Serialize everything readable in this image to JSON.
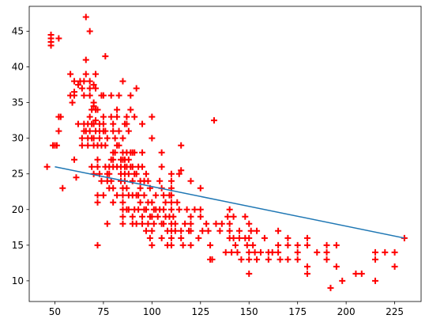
{
  "chart_data": {
    "type": "scatter",
    "title": "",
    "xlabel": "",
    "ylabel": "",
    "xlim": [
      36.8,
      238.6
    ],
    "ylim": [
      7.1,
      48.5
    ],
    "xticks": [
      50,
      75,
      100,
      125,
      150,
      175,
      200,
      225
    ],
    "yticks": [
      10,
      15,
      20,
      25,
      30,
      35,
      40,
      45
    ],
    "grid": false,
    "legend": "none",
    "colors": {
      "scatter": "#ff0000",
      "line": "#1f77b4",
      "axes": "#000000",
      "background": "#ffffff"
    },
    "series": [
      {
        "kind": "scatter",
        "marker": "plus",
        "points": [
          [
            46,
            26
          ],
          [
            48,
            43
          ],
          [
            48,
            43.5
          ],
          [
            48,
            44
          ],
          [
            48,
            44.5
          ],
          [
            49,
            29
          ],
          [
            50,
            29
          ],
          [
            51,
            29
          ],
          [
            52,
            44
          ],
          [
            52,
            33
          ],
          [
            52,
            31
          ],
          [
            53,
            33
          ],
          [
            54,
            23
          ],
          [
            58,
            36
          ],
          [
            58,
            39
          ],
          [
            59,
            35
          ],
          [
            60,
            38
          ],
          [
            60,
            36
          ],
          [
            60,
            36.5
          ],
          [
            60,
            27
          ],
          [
            61,
            24.5
          ],
          [
            62,
            37.5
          ],
          [
            62,
            32
          ],
          [
            63,
            38
          ],
          [
            64,
            37
          ],
          [
            64,
            30
          ],
          [
            64,
            29
          ],
          [
            65,
            36
          ],
          [
            65,
            32
          ],
          [
            65,
            31
          ],
          [
            65,
            38
          ],
          [
            66,
            41
          ],
          [
            66,
            39
          ],
          [
            66,
            31
          ],
          [
            66,
            47
          ],
          [
            67,
            32
          ],
          [
            67,
            30
          ],
          [
            67,
            29
          ],
          [
            68,
            33
          ],
          [
            68,
            31
          ],
          [
            68,
            38
          ],
          [
            68,
            45
          ],
          [
            68,
            37
          ],
          [
            68,
            36
          ],
          [
            69,
            32
          ],
          [
            69,
            34
          ],
          [
            69,
            30
          ],
          [
            69,
            26
          ],
          [
            70,
            32
          ],
          [
            70,
            34.5
          ],
          [
            70,
            37.5
          ],
          [
            70,
            35
          ],
          [
            70,
            30
          ],
          [
            70,
            29
          ],
          [
            70,
            25
          ],
          [
            71,
            34
          ],
          [
            71,
            31
          ],
          [
            71,
            39
          ],
          [
            71,
            37
          ],
          [
            71,
            32.5
          ],
          [
            72,
            34
          ],
          [
            72,
            29
          ],
          [
            72,
            27
          ],
          [
            72,
            26
          ],
          [
            72,
            22
          ],
          [
            72,
            21
          ],
          [
            72,
            15
          ],
          [
            73,
            32
          ],
          [
            73,
            31
          ],
          [
            73,
            30
          ],
          [
            73,
            25
          ],
          [
            74,
            36
          ],
          [
            74,
            29
          ],
          [
            74,
            24
          ],
          [
            75,
            36
          ],
          [
            75,
            33
          ],
          [
            75,
            32
          ],
          [
            75,
            31
          ],
          [
            75,
            22
          ],
          [
            76,
            41.5
          ],
          [
            76,
            31
          ],
          [
            76,
            29
          ],
          [
            76,
            26
          ],
          [
            77,
            30
          ],
          [
            77,
            25
          ],
          [
            77,
            24
          ],
          [
            77,
            18
          ],
          [
            78,
            26
          ],
          [
            78,
            25
          ],
          [
            78,
            23
          ],
          [
            79,
            36
          ],
          [
            79,
            33
          ],
          [
            79,
            27
          ],
          [
            79,
            24
          ],
          [
            80,
            32
          ],
          [
            80,
            31
          ],
          [
            80,
            28
          ],
          [
            80,
            27
          ],
          [
            80,
            26
          ],
          [
            80,
            23
          ],
          [
            80,
            21
          ],
          [
            81,
            30
          ],
          [
            81,
            28
          ],
          [
            82,
            34
          ],
          [
            82,
            33
          ],
          [
            82,
            29
          ],
          [
            82,
            26
          ],
          [
            82,
            22
          ],
          [
            83,
            36
          ],
          [
            83,
            31
          ],
          [
            83,
            29
          ],
          [
            84,
            27
          ],
          [
            84,
            26
          ],
          [
            84,
            25
          ],
          [
            84,
            24
          ],
          [
            85,
            38
          ],
          [
            85,
            30
          ],
          [
            85,
            28
          ],
          [
            85,
            27
          ],
          [
            85,
            23
          ],
          [
            85,
            22
          ],
          [
            85,
            21
          ],
          [
            85,
            20
          ],
          [
            85,
            19
          ],
          [
            85,
            18
          ],
          [
            86,
            32
          ],
          [
            86,
            27
          ],
          [
            86,
            26
          ],
          [
            86,
            25
          ],
          [
            86,
            24
          ],
          [
            87,
            33
          ],
          [
            87,
            32
          ],
          [
            87,
            28
          ],
          [
            87,
            26
          ],
          [
            87,
            23
          ],
          [
            87,
            20
          ],
          [
            88,
            31
          ],
          [
            88,
            27
          ],
          [
            88,
            25
          ],
          [
            88,
            22
          ],
          [
            88,
            20
          ],
          [
            89,
            36
          ],
          [
            89,
            34
          ],
          [
            89,
            28
          ],
          [
            89,
            26
          ],
          [
            90,
            28
          ],
          [
            90,
            26
          ],
          [
            90,
            24
          ],
          [
            90,
            22
          ],
          [
            90,
            19
          ],
          [
            90,
            18
          ],
          [
            91,
            33
          ],
          [
            91,
            28
          ],
          [
            91,
            25
          ],
          [
            91,
            20
          ],
          [
            92,
            37
          ],
          [
            92,
            25
          ],
          [
            92,
            22
          ],
          [
            92,
            18
          ],
          [
            93,
            26
          ],
          [
            93,
            22
          ],
          [
            93,
            20
          ],
          [
            94,
            24
          ],
          [
            94,
            23
          ],
          [
            94,
            21
          ],
          [
            95,
            32
          ],
          [
            95,
            28
          ],
          [
            95,
            26
          ],
          [
            95,
            19
          ],
          [
            95,
            18
          ],
          [
            96,
            24
          ],
          [
            96,
            22
          ],
          [
            96,
            20
          ],
          [
            97,
            25
          ],
          [
            97,
            20
          ],
          [
            97,
            17
          ],
          [
            98,
            24
          ],
          [
            98,
            21
          ],
          [
            98,
            18
          ],
          [
            99,
            23
          ],
          [
            99,
            19
          ],
          [
            99,
            16
          ],
          [
            100,
            33
          ],
          [
            100,
            30
          ],
          [
            100,
            21
          ],
          [
            100,
            19
          ],
          [
            100,
            17
          ],
          [
            100,
            15
          ],
          [
            101,
            20
          ],
          [
            101,
            18
          ],
          [
            102,
            22
          ],
          [
            102,
            20
          ],
          [
            103,
            19
          ],
          [
            104,
            24
          ],
          [
            104,
            20
          ],
          [
            105,
            28
          ],
          [
            105,
            26
          ],
          [
            105,
            23
          ],
          [
            105,
            18
          ],
          [
            105,
            16
          ],
          [
            106,
            22
          ],
          [
            106,
            20
          ],
          [
            106,
            18
          ],
          [
            107,
            21
          ],
          [
            107,
            19
          ],
          [
            108,
            17
          ],
          [
            108,
            15
          ],
          [
            109,
            22
          ],
          [
            109,
            19
          ],
          [
            110,
            25
          ],
          [
            110,
            24
          ],
          [
            110,
            23
          ],
          [
            110,
            22
          ],
          [
            110,
            21
          ],
          [
            110,
            20
          ],
          [
            110,
            18
          ],
          [
            110,
            17
          ],
          [
            110,
            16
          ],
          [
            110,
            15
          ],
          [
            111,
            19
          ],
          [
            112,
            18
          ],
          [
            112,
            17
          ],
          [
            113,
            21
          ],
          [
            114,
            25
          ],
          [
            114,
            20
          ],
          [
            115,
            29
          ],
          [
            115,
            25.5
          ],
          [
            115,
            17
          ],
          [
            115,
            16
          ],
          [
            116,
            15
          ],
          [
            117,
            18
          ],
          [
            118,
            20
          ],
          [
            119,
            17
          ],
          [
            120,
            24
          ],
          [
            120,
            19
          ],
          [
            120,
            18
          ],
          [
            120,
            17
          ],
          [
            120,
            15
          ],
          [
            122,
            20
          ],
          [
            124,
            16
          ],
          [
            125,
            23
          ],
          [
            125,
            20
          ],
          [
            125,
            19
          ],
          [
            126,
            17
          ],
          [
            128,
            18
          ],
          [
            129,
            17
          ],
          [
            130,
            13
          ],
          [
            130,
            15
          ],
          [
            131,
            13
          ],
          [
            132,
            32.5
          ],
          [
            133,
            18
          ],
          [
            135,
            17
          ],
          [
            136,
            18
          ],
          [
            138,
            14
          ],
          [
            139,
            19
          ],
          [
            140,
            20
          ],
          [
            140,
            18
          ],
          [
            140,
            17
          ],
          [
            140,
            16
          ],
          [
            141,
            14
          ],
          [
            142,
            19
          ],
          [
            142,
            16
          ],
          [
            143,
            15
          ],
          [
            144,
            14
          ],
          [
            145,
            17
          ],
          [
            145,
            16
          ],
          [
            146,
            13
          ],
          [
            148,
            16
          ],
          [
            148,
            19
          ],
          [
            149,
            15
          ],
          [
            150,
            18
          ],
          [
            150,
            16
          ],
          [
            150,
            14
          ],
          [
            150,
            13
          ],
          [
            150,
            11
          ],
          [
            151,
            17
          ],
          [
            152,
            15
          ],
          [
            153,
            14
          ],
          [
            154,
            17
          ],
          [
            154,
            13
          ],
          [
            156,
            14
          ],
          [
            158,
            16
          ],
          [
            160,
            14
          ],
          [
            160,
            13
          ],
          [
            162,
            14
          ],
          [
            165,
            17
          ],
          [
            165,
            15
          ],
          [
            165,
            14
          ],
          [
            166,
            13
          ],
          [
            170,
            16
          ],
          [
            170,
            15
          ],
          [
            170,
            13
          ],
          [
            175,
            15
          ],
          [
            175,
            14
          ],
          [
            175,
            13
          ],
          [
            180,
            16
          ],
          [
            180,
            15
          ],
          [
            180,
            12
          ],
          [
            180,
            11
          ],
          [
            185,
            14
          ],
          [
            190,
            15
          ],
          [
            190,
            13
          ],
          [
            190,
            14
          ],
          [
            192,
            9
          ],
          [
            195,
            12
          ],
          [
            195,
            15
          ],
          [
            198,
            10
          ],
          [
            205,
            11
          ],
          [
            208,
            11
          ],
          [
            215,
            14
          ],
          [
            215,
            13
          ],
          [
            215,
            10
          ],
          [
            220,
            14
          ],
          [
            225,
            14
          ],
          [
            225,
            12
          ],
          [
            230,
            16
          ]
        ]
      },
      {
        "kind": "line",
        "points": [
          [
            50,
            26
          ],
          [
            230,
            16
          ]
        ]
      }
    ]
  }
}
